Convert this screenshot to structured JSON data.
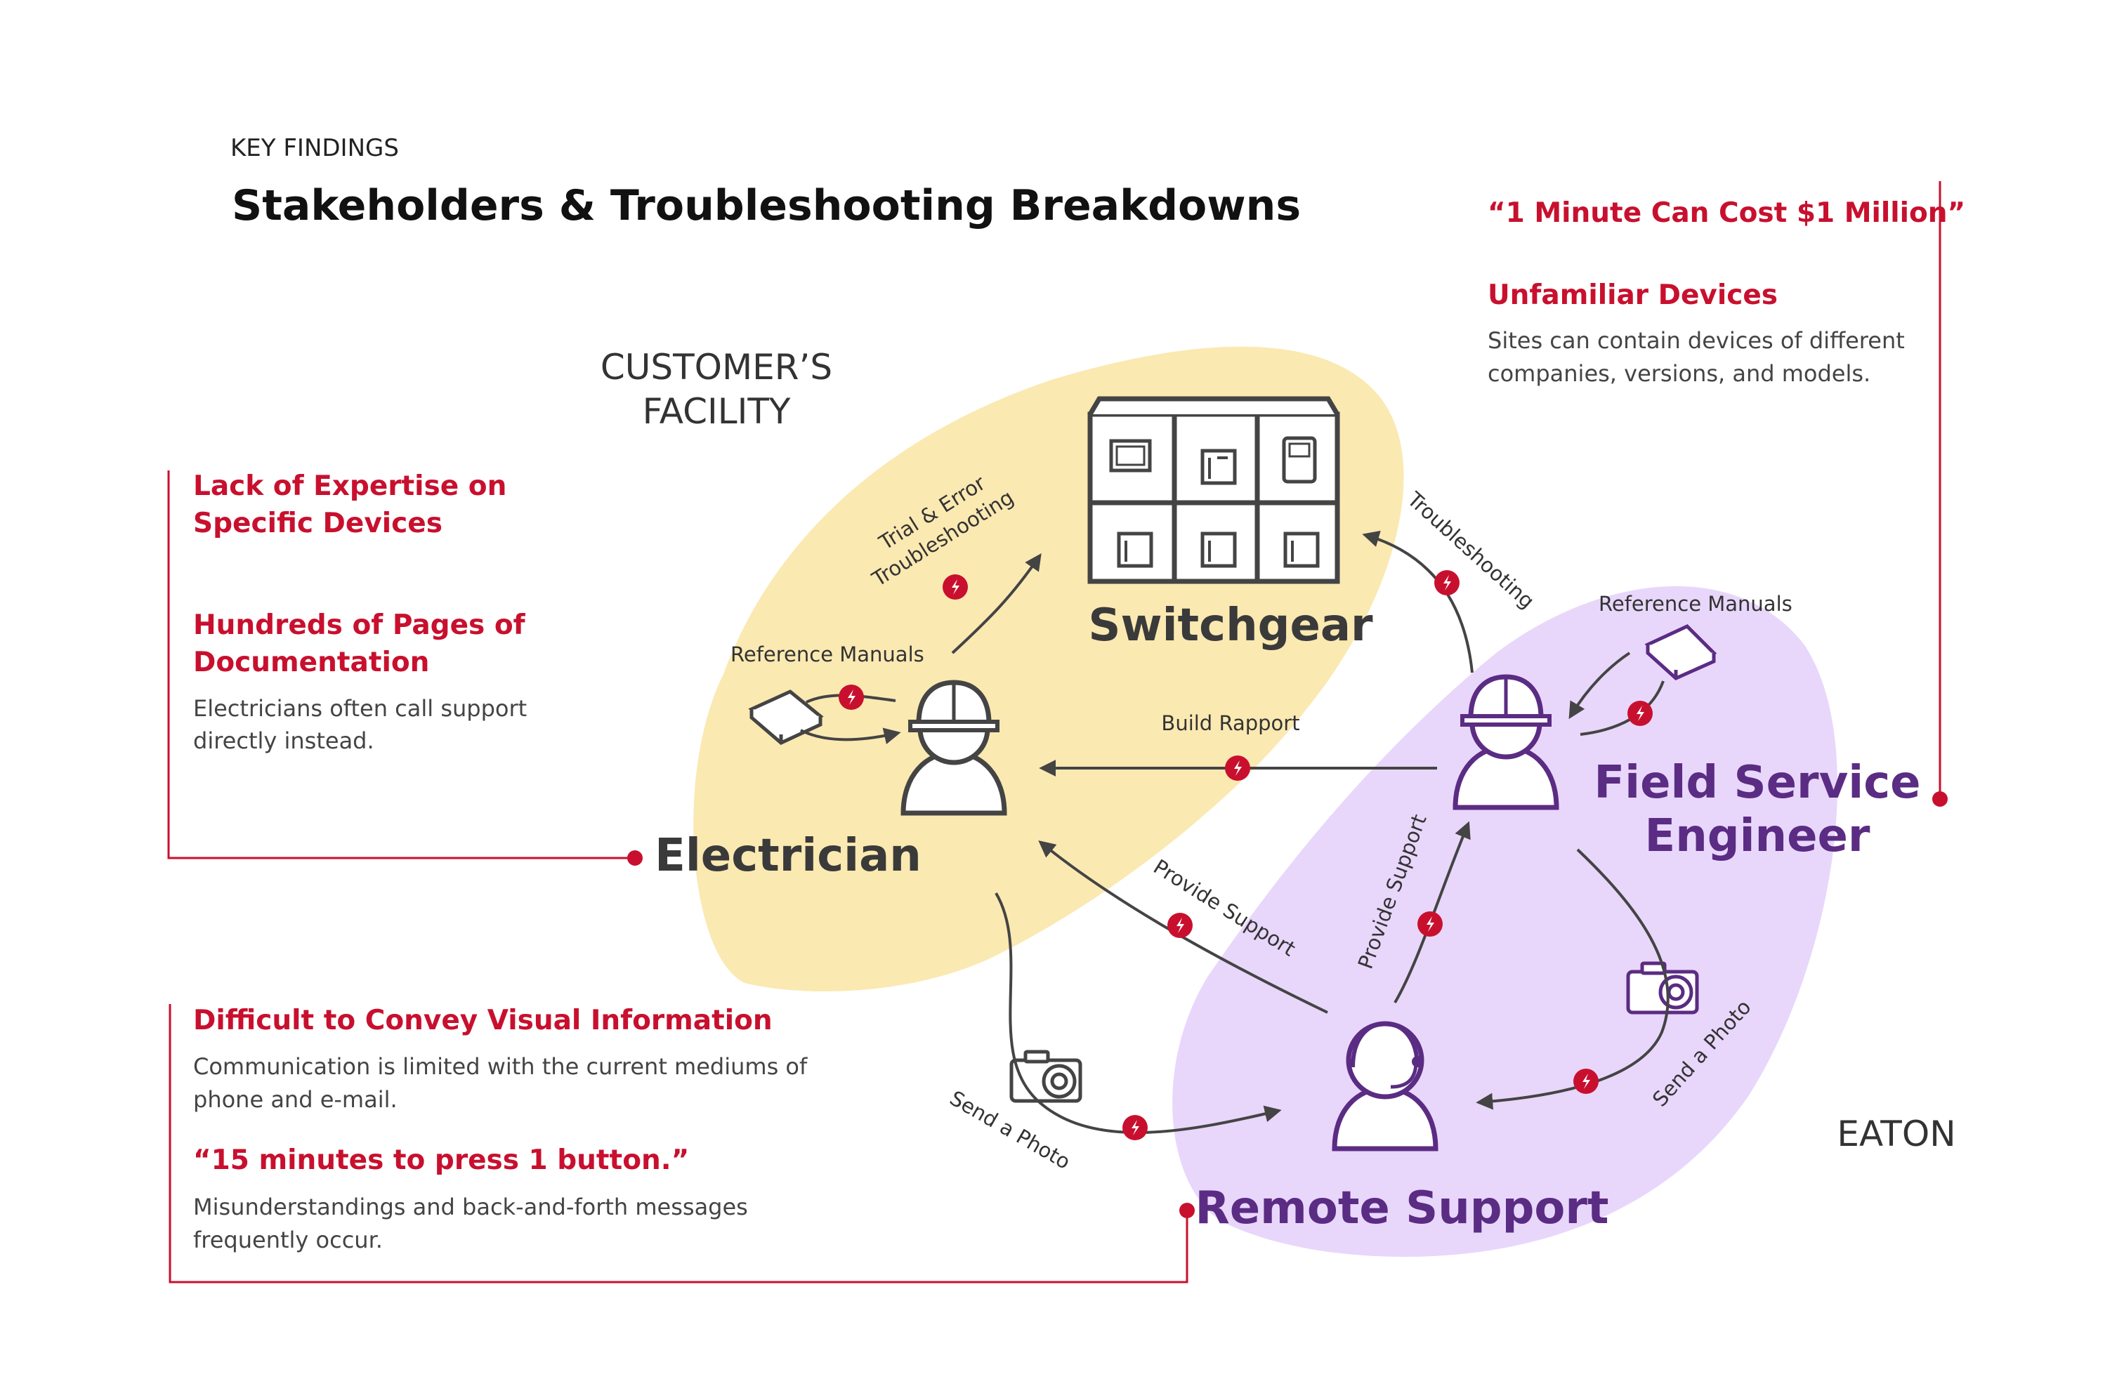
{
  "header": {
    "kicker": "KEY FINDINGS",
    "title": "Stakeholders & Troubleshooting Breakdowns"
  },
  "regions": {
    "customer_line1": "CUSTOMER’S",
    "customer_line2": "FACILITY",
    "eaton": "EATON"
  },
  "nodes": {
    "switchgear": "Switchgear",
    "electrician": "Electrician",
    "fse_line1": "Field Service",
    "fse_line2": "Engineer",
    "remote": "Remote Support"
  },
  "edges": {
    "trial_line1": "Trial & Error",
    "trial_line2": "Troubleshooting",
    "troubleshooting": "Troubleshooting",
    "ref_manuals_left": "Reference Manuals",
    "ref_manuals_right": "Reference Manuals",
    "build_rapport": "Build Rapport",
    "provide_support_left": "Provide Support",
    "provide_support_right": "Provide Support",
    "send_photo_left": "Send a Photo",
    "send_photo_right": "Send a Photo"
  },
  "left_top": {
    "h1_line1": "Lack of Expertise on",
    "h1_line2": "Specific Devices",
    "h2_line1": "Hundreds of Pages of",
    "h2_line2": "Documentation",
    "body_line1": "Electricians often call support",
    "body_line2": "directly instead."
  },
  "left_bottom": {
    "h1": "Difficult to Convey Visual Information",
    "body1_line1": "Communication is limited with the current mediums of",
    "body1_line2": "phone and e-mail.",
    "h2": "“15 minutes to press 1 button.”",
    "body2_line1": "Misunderstandings and back-and-forth messages",
    "body2_line2": "frequently occur."
  },
  "right_top": {
    "quote": "“1 Minute Can Cost $1 Million”",
    "h1": "Unfamiliar Devices",
    "body_line1": "Sites can contain devices of different",
    "body_line2": "companies, versions, and models."
  },
  "colors": {
    "customer_region": "#fbe9b2",
    "eaton_region": "#e7d5fb",
    "accent_red": "#c8102e",
    "purple_text": "#5b2c83",
    "icon_purple": "#5b2c83",
    "icon_dark": "#444444"
  }
}
